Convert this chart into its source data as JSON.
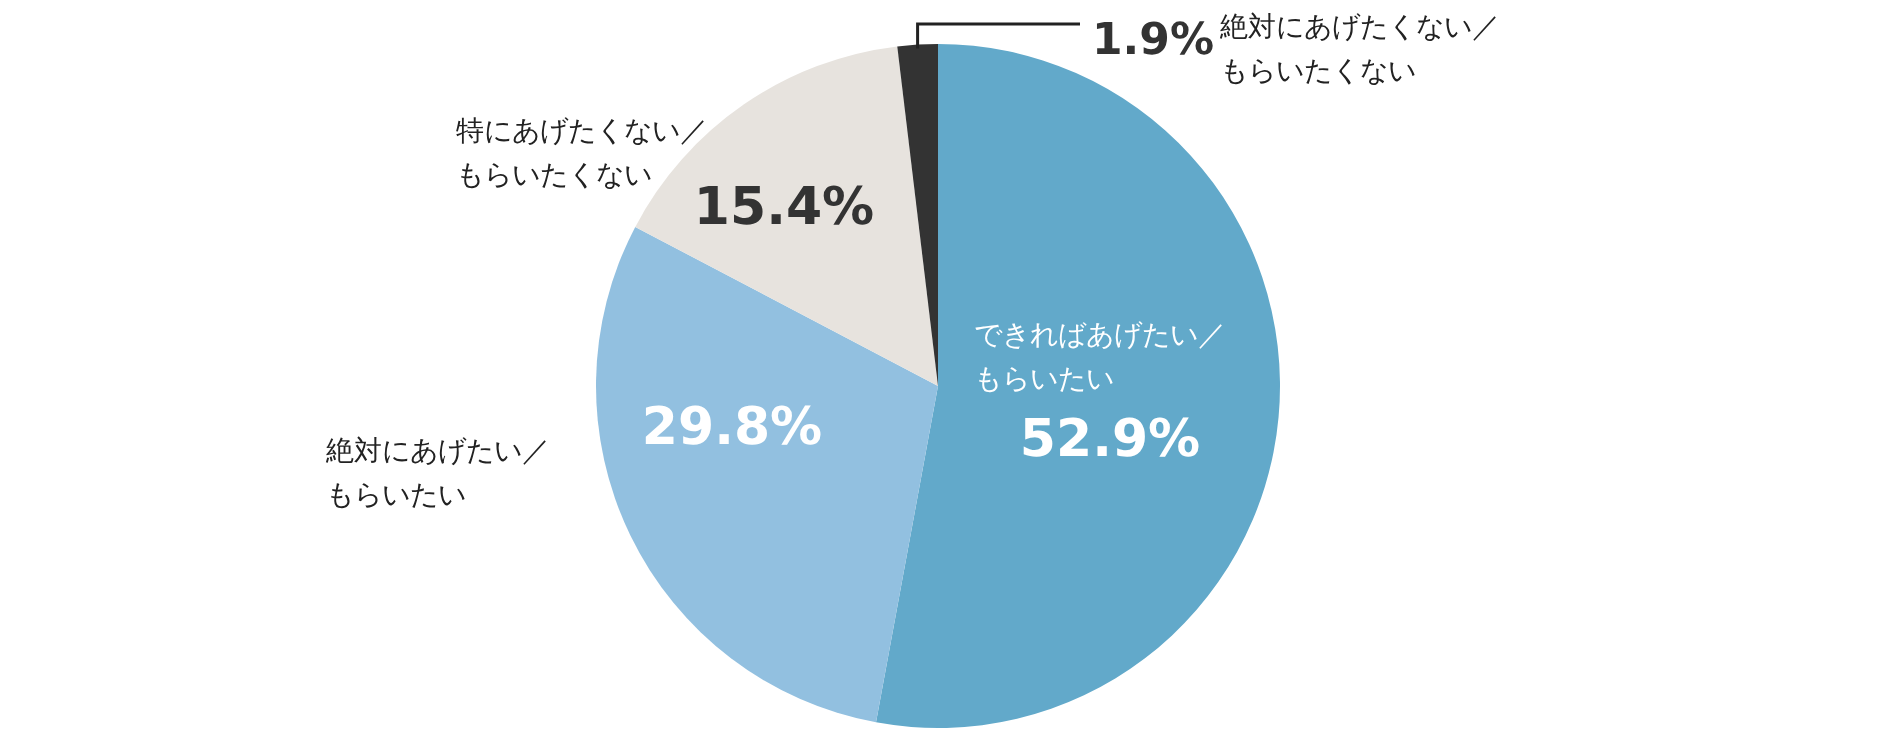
{
  "chart_data": {
    "type": "pie",
    "categories": [
      "できればあげたい／もらいたい",
      "絶対にあげたい／もらいたい",
      "特にあげたくない／もらいたくない",
      "絶対にあげたくない／もらいたくない"
    ],
    "values": [
      52.9,
      29.8,
      15.4,
      1.9
    ],
    "value_labels": [
      "52.9%",
      "29.8%",
      "15.4%",
      "1.9%"
    ],
    "colors": [
      "#62a9ca",
      "#92c0e0",
      "#e7e3de",
      "#333333"
    ]
  }
}
